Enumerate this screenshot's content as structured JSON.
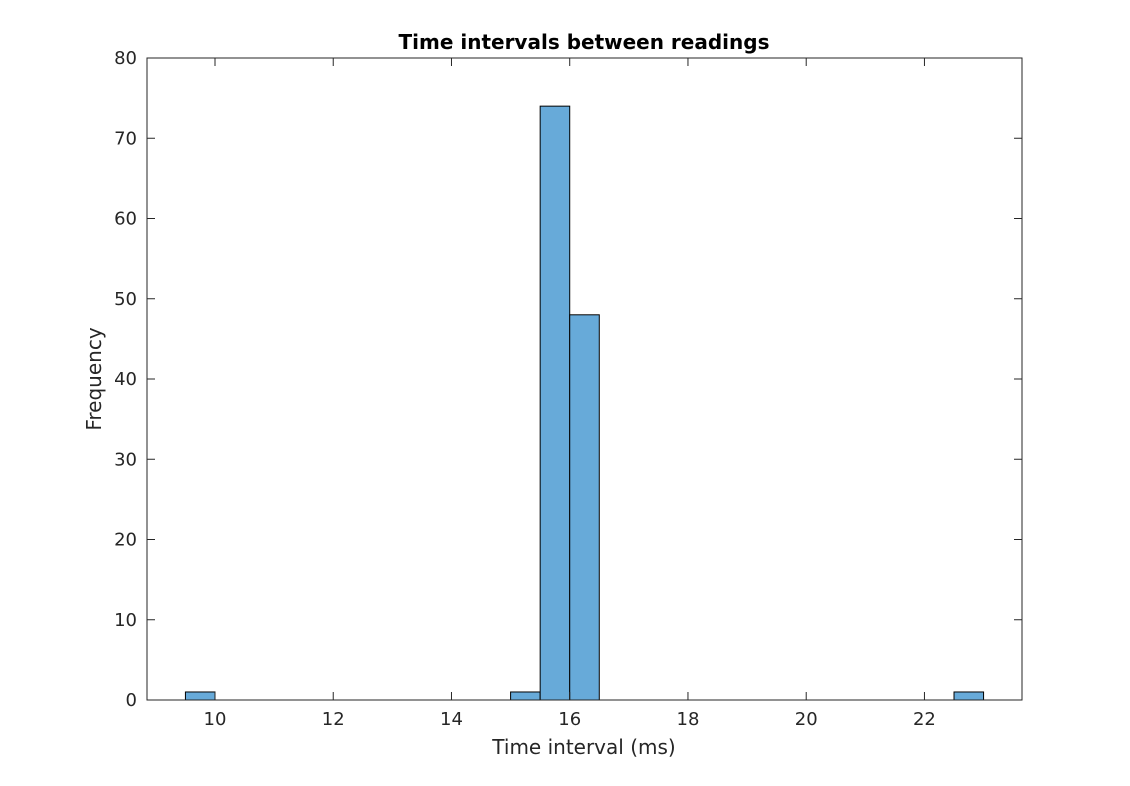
{
  "chart_data": {
    "type": "bar",
    "title": "Time intervals between readings",
    "xlabel": "Time interval (ms)",
    "ylabel": "Frequency",
    "xlim": [
      8.85,
      23.65
    ],
    "ylim": [
      0,
      80
    ],
    "xticks": [
      10,
      12,
      14,
      16,
      18,
      20,
      22
    ],
    "yticks": [
      0,
      10,
      20,
      30,
      40,
      50,
      60,
      70,
      80
    ],
    "bin_width": 0.5,
    "bins": [
      {
        "x0": 9.5,
        "x1": 10.0,
        "value": 1
      },
      {
        "x0": 15.0,
        "x1": 15.5,
        "value": 1
      },
      {
        "x0": 15.5,
        "x1": 16.0,
        "value": 74
      },
      {
        "x0": 16.0,
        "x1": 16.5,
        "value": 48
      },
      {
        "x0": 22.5,
        "x1": 23.0,
        "value": 1
      }
    ],
    "bar_color": "#67aad9",
    "edge_color": "#000000",
    "grid": false,
    "box": true
  }
}
